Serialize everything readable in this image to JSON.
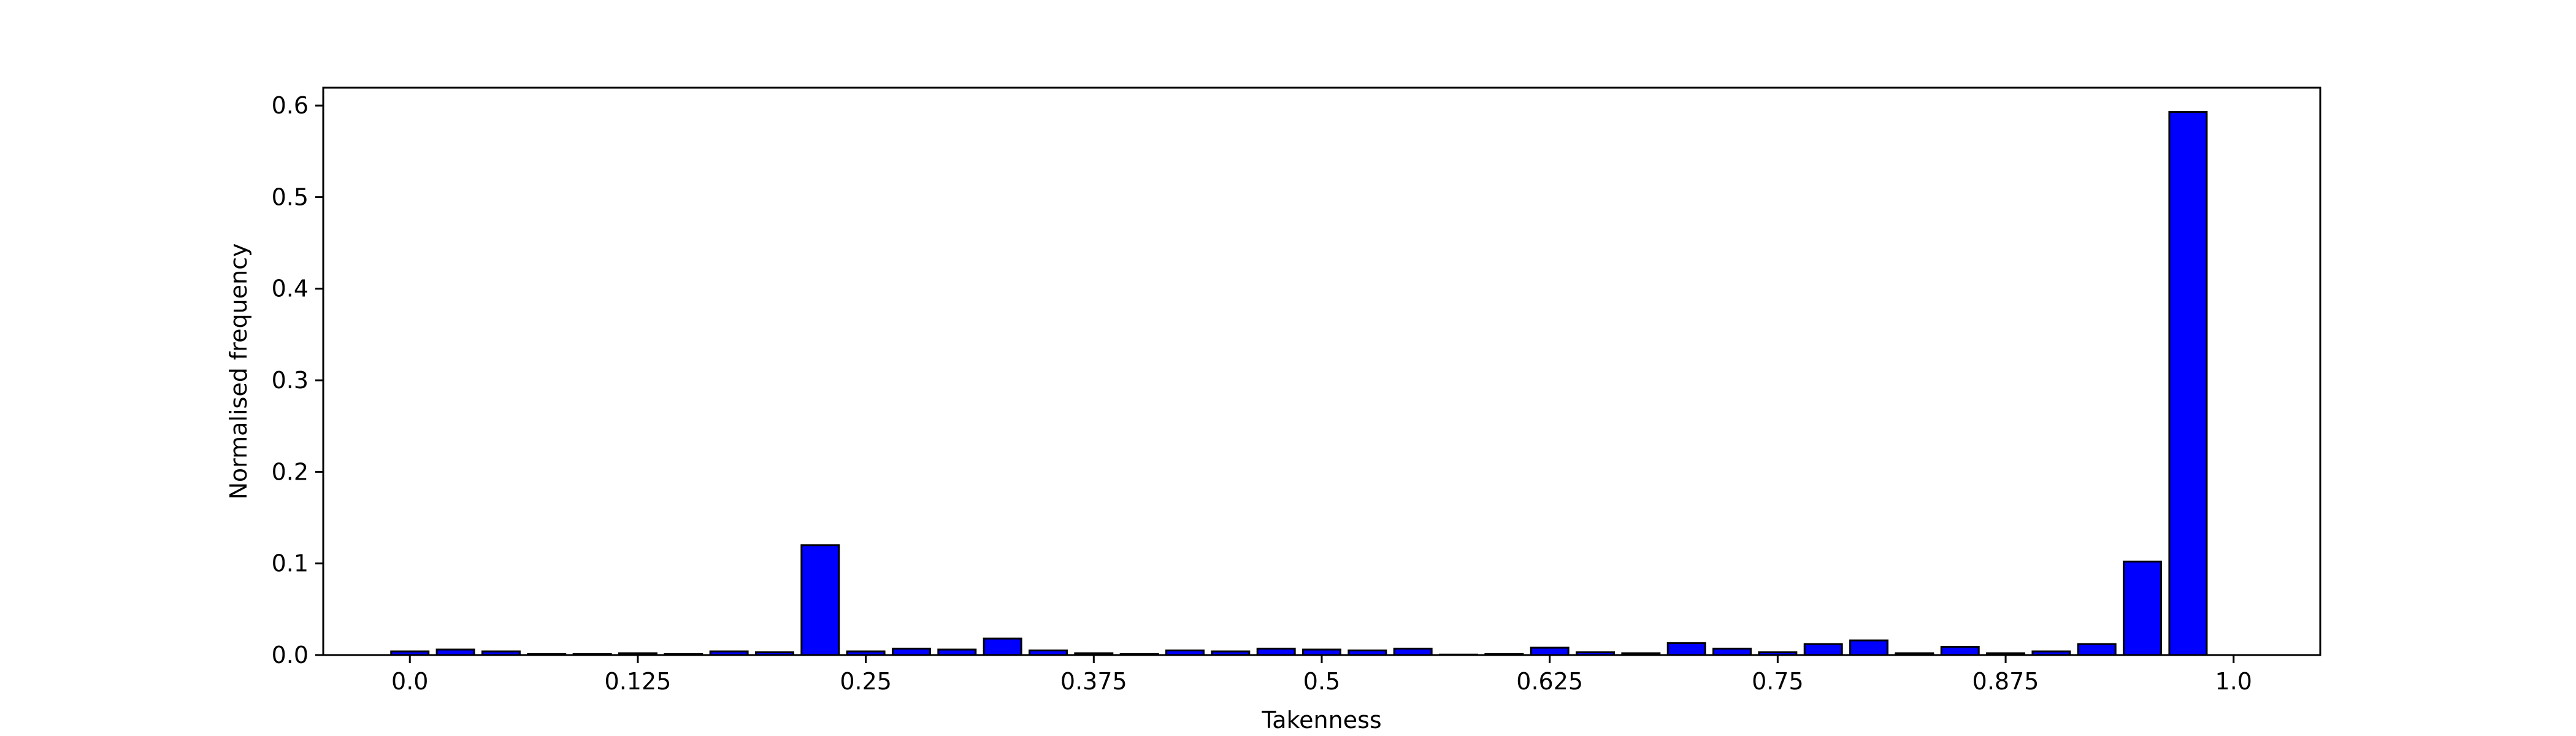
{
  "chart_data": {
    "type": "bar",
    "title": "",
    "xlabel": "Takenness",
    "ylabel": "Normalised frequency",
    "bar_color": "#0000ff",
    "edge_color": "#000000",
    "grid": false,
    "bin_width": 0.025,
    "xlim": [
      -0.0475,
      1.0475
    ],
    "ylim": [
      0,
      0.6195
    ],
    "x_ticks": [
      0.0,
      0.125,
      0.25,
      0.375,
      0.5,
      0.625,
      0.75,
      0.875,
      1.0
    ],
    "x_tick_labels": [
      "0.0",
      "0.125",
      "0.25",
      "0.375",
      "0.5",
      "0.625",
      "0.75",
      "0.875",
      "1.0"
    ],
    "y_ticks": [
      0.0,
      0.1,
      0.2,
      0.3,
      0.4,
      0.5,
      0.6
    ],
    "y_tick_labels": [
      "0.0",
      "0.1",
      "0.2",
      "0.3",
      "0.4",
      "0.5",
      "0.6"
    ],
    "x": [
      0.0,
      0.025,
      0.05,
      0.075,
      0.1,
      0.125,
      0.15,
      0.175,
      0.2,
      0.225,
      0.25,
      0.275,
      0.3,
      0.325,
      0.35,
      0.375,
      0.4,
      0.425,
      0.45,
      0.475,
      0.5,
      0.525,
      0.55,
      0.575,
      0.6,
      0.625,
      0.65,
      0.675,
      0.7,
      0.725,
      0.75,
      0.775,
      0.8,
      0.825,
      0.85,
      0.875,
      0.9,
      0.925,
      0.95,
      0.975
    ],
    "values": [
      0.004,
      0.006,
      0.004,
      0.001,
      0.001,
      0.002,
      0.001,
      0.004,
      0.003,
      0.12,
      0.004,
      0.007,
      0.006,
      0.018,
      0.005,
      0.002,
      0.001,
      0.005,
      0.004,
      0.007,
      0.006,
      0.005,
      0.007,
      0.0005,
      0.001,
      0.008,
      0.003,
      0.002,
      0.013,
      0.007,
      0.003,
      0.012,
      0.016,
      0.002,
      0.009,
      0.002,
      0.004,
      0.012,
      0.102,
      0.593
    ]
  }
}
